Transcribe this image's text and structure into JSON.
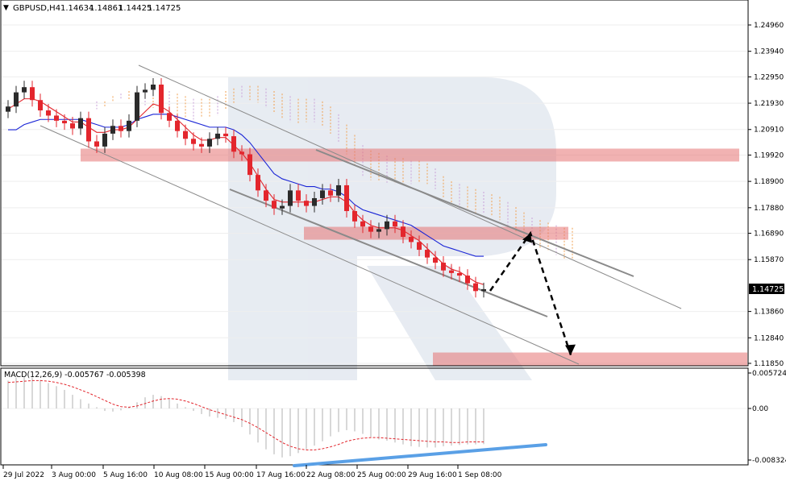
{
  "header": {
    "symbol": "GBPUSD,H4",
    "open": "1.14634",
    "high": "1.14861",
    "low": "1.14425",
    "close": "1.14725"
  },
  "colors": {
    "bull": "#2b2b2b",
    "bear": "#e3262d",
    "tenkan": "#e3262d",
    "kijun": "#1a25d6",
    "cloud_a": "#f0a050",
    "cloud_b": "#c8a0d8",
    "zone": "#e57373",
    "channel": "#8a8a8a",
    "macd_hist": "#bdbdbd",
    "macd_signal": "#e3262d",
    "divergence": "#5aa0e6",
    "watermark": "#dfe5ee"
  },
  "price_axis": {
    "labels": [
      "1.24960",
      "1.23940",
      "1.22950",
      "1.21930",
      "1.20910",
      "1.19920",
      "1.18900",
      "1.17880",
      "1.16890",
      "1.15870",
      "1.13860",
      "1.12840",
      "1.11850"
    ],
    "current_price": "1.14725"
  },
  "macd": {
    "label": "MACD(12,26,9) -0.005767 -0.005398",
    "axis_labels": [
      "0.005724",
      "0.00",
      "-0.008324"
    ]
  },
  "time_axis": {
    "labels": [
      "29 Jul 2022",
      "3 Aug 00:00",
      "5 Aug 16:00",
      "10 Aug 08:00",
      "15 Aug 00:00",
      "17 Aug 16:00",
      "22 Aug 08:00",
      "25 Aug 00:00",
      "29 Aug 16:00",
      "1 Sep 08:00"
    ]
  },
  "chart_data": [
    {
      "type": "candlestick",
      "series": [
        {
          "name": "price",
          "close": [
            1.218,
            1.2235,
            1.2255,
            1.2205,
            1.2165,
            1.2145,
            1.2125,
            1.2115,
            1.2095,
            1.2135,
            1.2045,
            1.2025,
            1.2075,
            1.2105,
            1.2085,
            1.2125,
            1.2235,
            1.2245,
            1.2265,
            1.2155,
            1.2125,
            1.2085,
            1.2055,
            1.2035,
            1.2025,
            1.2055,
            1.2075,
            1.2065,
            1.2005,
            1.1995,
            1.1915,
            1.1855,
            1.1815,
            1.1785,
            1.1795,
            1.1855,
            1.1815,
            1.1795,
            1.1825,
            1.1855,
            1.1835,
            1.1875,
            1.1775,
            1.1735,
            1.1715,
            1.1695,
            1.1705,
            1.1735,
            1.1715,
            1.1675,
            1.1655,
            1.1625,
            1.1595,
            1.1575,
            1.1545,
            1.1535,
            1.1525,
            1.1495,
            1.1465,
            1.14725
          ]
        },
        {
          "name": "tenkan",
          "values": [
            1.217,
            1.219,
            1.221,
            1.221,
            1.22,
            1.218,
            1.216,
            1.214,
            1.212,
            1.212,
            1.21,
            1.208,
            1.208,
            1.209,
            1.209,
            1.21,
            1.213,
            1.216,
            1.219,
            1.218,
            1.216,
            1.213,
            1.21,
            1.207,
            1.205,
            1.205,
            1.206,
            1.206,
            1.203,
            1.2,
            1.196,
            1.191,
            1.186,
            1.182,
            1.181,
            1.181,
            1.181,
            1.181,
            1.181,
            1.182,
            1.183,
            1.183,
            1.181,
            1.177,
            1.174,
            1.172,
            1.171,
            1.171,
            1.171,
            1.17,
            1.168,
            1.166,
            1.163,
            1.16,
            1.157,
            1.155,
            1.154,
            1.152,
            1.15,
            1.149
          ]
        },
        {
          "name": "kijun",
          "values": [
            1.209,
            1.209,
            1.211,
            1.212,
            1.213,
            1.213,
            1.213,
            1.213,
            1.213,
            1.213,
            1.212,
            1.211,
            1.21,
            1.21,
            1.21,
            1.211,
            1.213,
            1.214,
            1.215,
            1.215,
            1.215,
            1.214,
            1.213,
            1.212,
            1.211,
            1.21,
            1.21,
            1.21,
            1.209,
            1.207,
            1.204,
            1.2,
            1.196,
            1.192,
            1.19,
            1.189,
            1.188,
            1.187,
            1.187,
            1.186,
            1.186,
            1.185,
            1.183,
            1.18,
            1.178,
            1.177,
            1.176,
            1.175,
            1.174,
            1.173,
            1.172,
            1.17,
            1.168,
            1.166,
            1.164,
            1.163,
            1.162,
            1.161,
            1.16,
            1.16
          ]
        }
      ],
      "ylim": [
        1.1185,
        1.2535
      ],
      "price_levels": [
        1.2496,
        1.2394,
        1.2295,
        1.2193,
        1.2091,
        1.1992,
        1.189,
        1.1788,
        1.1689,
        1.1587,
        1.1386,
        1.1284,
        1.1185
      ],
      "resistance_zones": [
        1.1992,
        1.1689,
        1.1202
      ],
      "forecast": {
        "from": 1.1466,
        "peak": 1.1689,
        "target": 1.1205
      }
    },
    {
      "type": "bar",
      "title": "MACD(12,26,9) -0.005767 -0.005398",
      "ylim": [
        -0.008324,
        0.005724
      ],
      "series": [
        {
          "name": "histogram",
          "values": [
            0.0045,
            0.005,
            0.0052,
            0.005,
            0.0046,
            0.0041,
            0.0036,
            0.003,
            0.0022,
            0.0015,
            0.0008,
            0.0002,
            -0.0004,
            -0.0005,
            -0.0003,
            0.0002,
            0.001,
            0.0018,
            0.0022,
            0.002,
            0.0015,
            0.0008,
            0.0002,
            -0.0004,
            -0.0009,
            -0.0013,
            -0.0015,
            -0.0017,
            -0.0022,
            -0.003,
            -0.0042,
            -0.0055,
            -0.0066,
            -0.0074,
            -0.0079,
            -0.0077,
            -0.0072,
            -0.0066,
            -0.006,
            -0.0053,
            -0.0045,
            -0.0038,
            -0.0035,
            -0.0037,
            -0.0041,
            -0.0046,
            -0.005,
            -0.0052,
            -0.0055,
            -0.0058,
            -0.0061,
            -0.0062,
            -0.0063,
            -0.0063,
            -0.0061,
            -0.006,
            -0.0059,
            -0.0058,
            -0.0058,
            -0.005767
          ]
        },
        {
          "name": "signal",
          "values": [
            0.0042,
            0.0043,
            0.0044,
            0.0045,
            0.0045,
            0.0044,
            0.0042,
            0.0039,
            0.0035,
            0.003,
            0.0025,
            0.0019,
            0.0013,
            0.0007,
            0.0003,
            0.0002,
            0.0004,
            0.0008,
            0.0012,
            0.0015,
            0.0016,
            0.0015,
            0.0012,
            0.0008,
            0.0003,
            -0.0002,
            -0.0006,
            -0.001,
            -0.0014,
            -0.0018,
            -0.0024,
            -0.0031,
            -0.0039,
            -0.0047,
            -0.0055,
            -0.0061,
            -0.0065,
            -0.0067,
            -0.0067,
            -0.0065,
            -0.0062,
            -0.0058,
            -0.0053,
            -0.005,
            -0.0048,
            -0.0047,
            -0.0047,
            -0.0048,
            -0.0049,
            -0.005,
            -0.0051,
            -0.0052,
            -0.0053,
            -0.0054,
            -0.0054,
            -0.0055,
            -0.0055,
            -0.0054,
            -0.0054,
            -0.005398
          ]
        }
      ]
    }
  ]
}
